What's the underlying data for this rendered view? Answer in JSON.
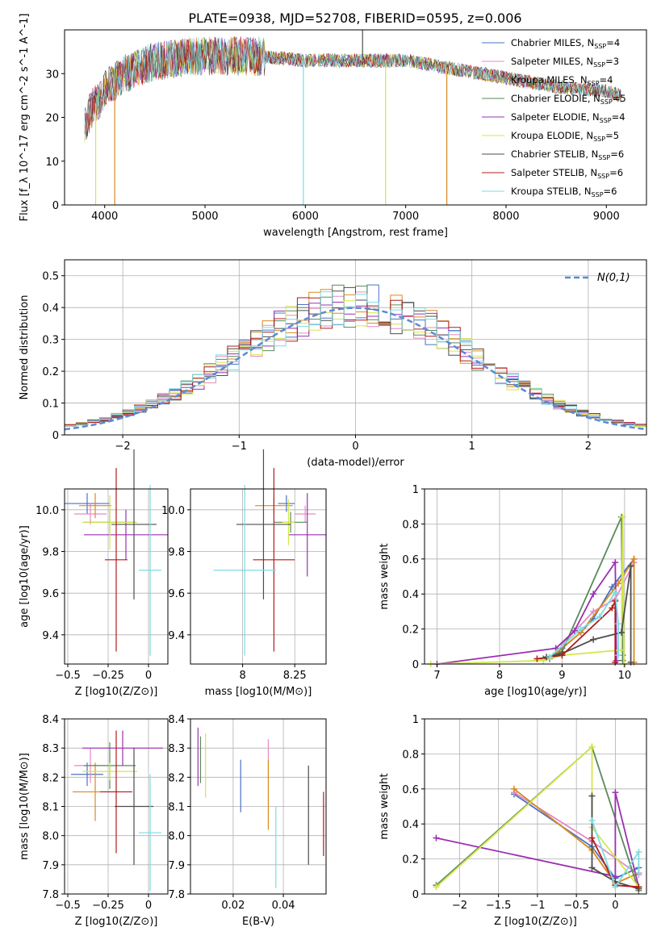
{
  "figure_title": "PLATE=0938, MJD=52708, FIBERID=0595, z=0.006",
  "models": [
    {
      "name": "Chabrier MILES",
      "nssp": "4",
      "color": "#4a72c4"
    },
    {
      "name": "Salpeter MILES",
      "nssp": "3",
      "color": "#e68ac3"
    },
    {
      "name": "Kroupa MILES",
      "nssp": "4",
      "color": "#d98a1f"
    },
    {
      "name": "Chabrier ELODIE",
      "nssp": "5",
      "color": "#5a8a5a"
    },
    {
      "name": "Salpeter ELODIE",
      "nssp": "4",
      "color": "#9b30b0"
    },
    {
      "name": "Kroupa ELODIE",
      "nssp": "5",
      "color": "#d4e64a"
    },
    {
      "name": "Chabrier STELIB",
      "nssp": "6",
      "color": "#4d4d4d"
    },
    {
      "name": "Salpeter STELIB",
      "nssp": "6",
      "color": "#b01c1c"
    },
    {
      "name": "Kroupa STELIB",
      "nssp": "6",
      "color": "#7ddbe0"
    }
  ],
  "legend_nssp_prefix": "N",
  "legend_nssp_sub": "SSP",
  "chart_data": [
    {
      "id": "spectrum",
      "type": "line",
      "xlabel": "wavelength [Angstrom, rest frame]",
      "ylabel": "Flux [f_λ 10^-17 erg cm^-2 s^-1 A^-1]",
      "xlim": [
        3600,
        9400
      ],
      "ylim": [
        0,
        40
      ],
      "xticks": [
        4000,
        5000,
        6000,
        7000,
        8000,
        9000
      ],
      "yticks": [
        0,
        10,
        20,
        30
      ],
      "grid": false,
      "legend": "top-right",
      "envelope": {
        "x": [
          3800,
          3850,
          3900,
          3950,
          4000,
          4100,
          4200,
          4300,
          4400,
          4500,
          4600,
          4800,
          5000,
          5200,
          5500,
          6000,
          6500,
          7000,
          7500,
          8000,
          8500,
          9000,
          9150
        ],
        "y": [
          18,
          21,
          23,
          24,
          27,
          28,
          30,
          31,
          32,
          33,
          33,
          34,
          34,
          34,
          34,
          33,
          33,
          33,
          31,
          29,
          27,
          26,
          25
        ]
      },
      "spikes": [
        {
          "x": 3910,
          "y": 0,
          "series": 5
        },
        {
          "x": 4100,
          "y": 0,
          "series": 2
        },
        {
          "x": 5980,
          "y": 0,
          "series": 8
        },
        {
          "x": 6570,
          "y": 40,
          "series": 6
        },
        {
          "x": 6800,
          "y": 0,
          "series": 5
        },
        {
          "x": 7410,
          "y": 0,
          "series": 2
        }
      ]
    },
    {
      "id": "residuals",
      "type": "histogram",
      "xlabel": "(data-model)/error",
      "ylabel": "Normed distribution",
      "xlim": [
        -2.5,
        2.5
      ],
      "ylim": [
        0,
        0.55
      ],
      "xticks": [
        -2,
        -1,
        0,
        1,
        2
      ],
      "yticks": [
        0,
        0.1,
        0.2,
        0.3,
        0.4,
        0.5
      ],
      "grid": true,
      "legend": "top-right",
      "reference_label": "N(0,1)",
      "reference_color": "#5b8ad6",
      "bin_width": 0.1
    },
    {
      "id": "age-vs-Z",
      "type": "errorbar",
      "xlabel": "Z [log10(Z/Z⊙)]",
      "ylabel": "age [log10(age/yr)]",
      "xlim": [
        -0.52,
        0.12
      ],
      "ylim": [
        9.26,
        10.1
      ],
      "xticks": [
        -0.5,
        -0.25,
        0.0
      ],
      "yticks": [
        9.4,
        9.6,
        9.8,
        10.0
      ],
      "grid": true,
      "points": [
        {
          "x": -0.38,
          "y": 10.03,
          "xerr": 0.14,
          "yerr": 0.05,
          "series": 0
        },
        {
          "x": -0.36,
          "y": 9.98,
          "xerr": 0.1,
          "yerr": 0.05,
          "series": 1
        },
        {
          "x": -0.33,
          "y": 10.02,
          "xerr": 0.1,
          "yerr": 0.06,
          "series": 2
        },
        {
          "x": -0.24,
          "y": 9.94,
          "xerr": 0.16,
          "yerr": 0.06,
          "series": 3
        },
        {
          "x": -0.14,
          "y": 9.88,
          "xerr": 0.26,
          "yerr": 0.12,
          "series": 4
        },
        {
          "x": -0.24,
          "y": 9.94,
          "xerr": 0.17,
          "yerr": 0.13,
          "series": 5
        },
        {
          "x": -0.09,
          "y": 9.93,
          "xerr": 0.14,
          "yerr": 0.36,
          "series": 6
        },
        {
          "x": -0.2,
          "y": 9.76,
          "xerr": 0.07,
          "yerr": 0.44,
          "series": 7
        },
        {
          "x": 0.01,
          "y": 9.71,
          "xerr": 0.07,
          "yerr": 0.41,
          "series": 8
        }
      ]
    },
    {
      "id": "age-vs-mass",
      "type": "errorbar",
      "xlabel": "mass [log10(M/M⊙)]",
      "ylabel": "",
      "xlim": [
        7.75,
        8.4
      ],
      "ylim": [
        9.26,
        10.1
      ],
      "xticks": [
        8.0,
        8.25
      ],
      "yticks": [
        9.4,
        9.6,
        9.8,
        10.0
      ],
      "grid": true,
      "points": [
        {
          "x": 8.21,
          "y": 10.03,
          "xerr": 0.04,
          "yerr": 0.04,
          "series": 0
        },
        {
          "x": 8.3,
          "y": 9.98,
          "xerr": 0.05,
          "yerr": 0.04,
          "series": 1
        },
        {
          "x": 8.15,
          "y": 10.02,
          "xerr": 0.09,
          "yerr": 0.04,
          "series": 2
        },
        {
          "x": 8.23,
          "y": 9.94,
          "xerr": 0.08,
          "yerr": 0.05,
          "series": 3
        },
        {
          "x": 8.31,
          "y": 9.88,
          "xerr": 0.09,
          "yerr": 0.2,
          "series": 4
        },
        {
          "x": 8.22,
          "y": 9.94,
          "xerr": 0.03,
          "yerr": 0.11,
          "series": 5
        },
        {
          "x": 8.1,
          "y": 9.93,
          "xerr": 0.13,
          "yerr": 0.36,
          "series": 6
        },
        {
          "x": 8.15,
          "y": 9.76,
          "xerr": 0.1,
          "yerr": 0.44,
          "series": 7
        },
        {
          "x": 8.01,
          "y": 9.71,
          "xerr": 0.15,
          "yerr": 0.41,
          "series": 8
        }
      ]
    },
    {
      "id": "mass-weight-vs-age",
      "type": "line",
      "xlabel": "age [log10(age/yr)]",
      "ylabel": "mass weight",
      "xlim": [
        6.8,
        10.35
      ],
      "ylim": [
        0,
        1
      ],
      "xticks": [
        7,
        8,
        9,
        10
      ],
      "yticks": [
        0,
        0.2,
        0.4,
        0.6,
        0.8,
        1.0
      ],
      "grid": true,
      "series": [
        {
          "series": 0,
          "x": [
            8.8,
            9.0,
            9.3,
            9.5,
            9.8,
            10.15
          ],
          "y": [
            0.03,
            0.09,
            0.18,
            0.26,
            0.44,
            0.6
          ]
        },
        {
          "series": 1,
          "x": [
            9.0,
            9.5,
            9.85,
            10.15
          ],
          "y": [
            0.11,
            0.3,
            0.37,
            0.58
          ]
        },
        {
          "series": 2,
          "x": [
            8.9,
            9.3,
            9.9,
            10.15,
            10.15
          ],
          "y": [
            0.06,
            0.18,
            0.46,
            0.6,
            0.01
          ]
        },
        {
          "series": 3,
          "x": [
            8.7,
            9.0,
            9.95,
            9.97,
            9.97
          ],
          "y": [
            0.03,
            0.07,
            0.84,
            0.05,
            0.02
          ]
        },
        {
          "series": 4,
          "x": [
            7.0,
            8.9,
            9.2,
            9.5,
            9.85,
            9.87
          ],
          "y": [
            0.0,
            0.09,
            0.19,
            0.4,
            0.58,
            0.02
          ]
        },
        {
          "series": 5,
          "x": [
            6.9,
            8.7,
            9.0,
            9.95,
            9.97,
            9.99
          ],
          "y": [
            0.0,
            0.02,
            0.05,
            0.08,
            0.84,
            0.0
          ]
        },
        {
          "series": 6,
          "x": [
            8.75,
            9.0,
            9.5,
            9.95,
            10.1,
            10.1
          ],
          "y": [
            0.04,
            0.06,
            0.14,
            0.18,
            0.56,
            0.01
          ]
        },
        {
          "series": 7,
          "x": [
            8.6,
            9.0,
            9.8,
            9.85,
            9.85
          ],
          "y": [
            0.03,
            0.05,
            0.32,
            0.36,
            0.01
          ]
        },
        {
          "series": 8,
          "x": [
            8.8,
            9.3,
            9.6,
            9.85,
            9.9,
            9.9
          ],
          "y": [
            0.04,
            0.2,
            0.27,
            0.41,
            0.23,
            0.05
          ]
        }
      ]
    },
    {
      "id": "mass-vs-Z",
      "type": "errorbar",
      "xlabel": "Z [log10(Z/Z⊙)]",
      "ylabel": "mass [log10(M/M⊙)]",
      "xlim": [
        -0.52,
        0.12
      ],
      "ylim": [
        7.8,
        8.4
      ],
      "xticks": [
        -0.5,
        -0.25,
        0.0
      ],
      "yticks": [
        7.8,
        7.9,
        8.0,
        8.1,
        8.2,
        8.3,
        8.4
      ],
      "grid": true,
      "points": [
        {
          "x": -0.38,
          "y": 8.21,
          "xerr": 0.1,
          "yerr": 0.04,
          "series": 0
        },
        {
          "x": -0.36,
          "y": 8.24,
          "xerr": 0.1,
          "yerr": 0.06,
          "series": 1
        },
        {
          "x": -0.33,
          "y": 8.15,
          "xerr": 0.14,
          "yerr": 0.1,
          "series": 2
        },
        {
          "x": -0.24,
          "y": 8.24,
          "xerr": 0.16,
          "yerr": 0.08,
          "series": 3
        },
        {
          "x": -0.16,
          "y": 8.3,
          "xerr": 0.25,
          "yerr": 0.06,
          "series": 4
        },
        {
          "x": -0.24,
          "y": 8.22,
          "xerr": 0.17,
          "yerr": 0.03,
          "series": 5
        },
        {
          "x": -0.09,
          "y": 8.1,
          "xerr": 0.12,
          "yerr": 0.2,
          "series": 6
        },
        {
          "x": -0.2,
          "y": 8.15,
          "xerr": 0.1,
          "yerr": 0.21,
          "series": 7
        },
        {
          "x": 0.01,
          "y": 8.01,
          "xerr": 0.07,
          "yerr": 0.2,
          "series": 8
        }
      ]
    },
    {
      "id": "mass-vs-EBV",
      "type": "errorbar",
      "xlabel": "E(B-V)",
      "ylabel": "",
      "xlim": [
        0.003,
        0.057
      ],
      "ylim": [
        7.8,
        8.4
      ],
      "xticks": [
        0.02,
        0.04
      ],
      "yticks": [
        7.8,
        7.9,
        8.0,
        8.1,
        8.2,
        8.3,
        8.4
      ],
      "grid": true,
      "points": [
        {
          "x": 0.023,
          "y": 8.17,
          "xerr": 0,
          "yerr": 0.09,
          "series": 0
        },
        {
          "x": 0.034,
          "y": 8.26,
          "xerr": 0,
          "yerr": 0.07,
          "series": 1
        },
        {
          "x": 0.034,
          "y": 8.14,
          "xerr": 0,
          "yerr": 0.12,
          "series": 2
        },
        {
          "x": 0.007,
          "y": 8.26,
          "xerr": 0,
          "yerr": 0.08,
          "series": 3
        },
        {
          "x": 0.006,
          "y": 8.27,
          "xerr": 0,
          "yerr": 0.1,
          "series": 4
        },
        {
          "x": 0.009,
          "y": 8.24,
          "xerr": 0,
          "yerr": 0.11,
          "series": 5
        },
        {
          "x": 0.05,
          "y": 8.07,
          "xerr": 0,
          "yerr": 0.17,
          "series": 6
        },
        {
          "x": 0.056,
          "y": 8.04,
          "xerr": 0,
          "yerr": 0.11,
          "series": 7
        },
        {
          "x": 0.037,
          "y": 7.96,
          "xerr": 0,
          "yerr": 0.14,
          "series": 8
        }
      ]
    },
    {
      "id": "mass-weight-vs-Z",
      "type": "line",
      "xlabel": "Z [log10(Z/Z⊙)]",
      "ylabel": "mass weight",
      "xlim": [
        -2.45,
        0.4
      ],
      "ylim": [
        0,
        1
      ],
      "xticks": [
        -2.0,
        -1.5,
        -1.0,
        -0.5,
        0.0
      ],
      "yticks": [
        0,
        0.2,
        0.4,
        0.6,
        0.8,
        1.0
      ],
      "grid": true,
      "series": [
        {
          "series": 0,
          "x": [
            -1.3,
            -0.3,
            0.0,
            0.3
          ],
          "y": [
            0.57,
            0.27,
            0.09,
            0.15
          ]
        },
        {
          "series": 1,
          "x": [
            -1.3,
            -0.3,
            0.3
          ],
          "y": [
            0.58,
            0.3,
            0.11
          ]
        },
        {
          "series": 2,
          "x": [
            -1.3,
            -0.3,
            0.0,
            0.3
          ],
          "y": [
            0.6,
            0.25,
            0.06,
            0.12
          ]
        },
        {
          "series": 3,
          "x": [
            -2.3,
            -0.3,
            0.3
          ],
          "y": [
            0.05,
            0.84,
            0.02
          ]
        },
        {
          "series": 4,
          "x": [
            -2.3,
            0.0,
            0.0,
            0.3
          ],
          "y": [
            0.32,
            0.1,
            0.58,
            0.04
          ]
        },
        {
          "series": 5,
          "x": [
            -2.3,
            -0.3,
            -0.3,
            0.3
          ],
          "y": [
            0.04,
            0.84,
            0.38,
            0.04
          ]
        },
        {
          "series": 6,
          "x": [
            -0.3,
            -0.3,
            0.0,
            0.3
          ],
          "y": [
            0.56,
            0.15,
            0.07,
            0.03
          ]
        },
        {
          "series": 7,
          "x": [
            -0.3,
            0.0,
            0.3
          ],
          "y": [
            0.32,
            0.05,
            0.04
          ]
        },
        {
          "series": 8,
          "x": [
            -0.3,
            0.0,
            0.3,
            0.3
          ],
          "y": [
            0.42,
            0.04,
            0.24,
            0.12
          ]
        }
      ]
    }
  ]
}
